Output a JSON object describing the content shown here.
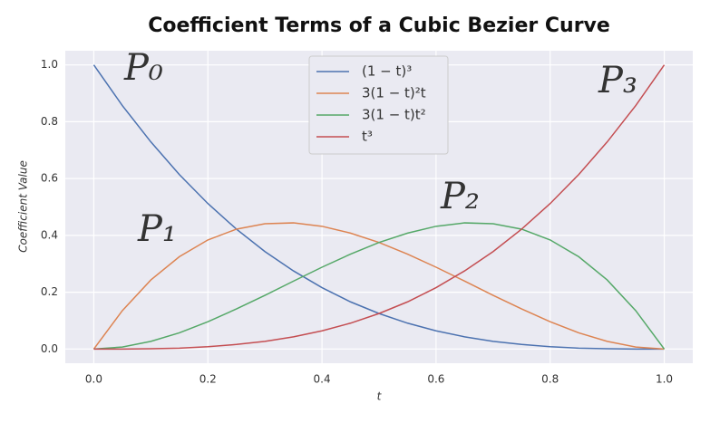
{
  "chart_data": {
    "type": "line",
    "title": "Coefficient Terms of a Cubic Bezier Curve",
    "x_label": "t",
    "y_label": "Coefficient Value",
    "x": [
      0,
      0.05,
      0.1,
      0.15,
      0.2,
      0.25,
      0.3,
      0.35,
      0.4,
      0.45,
      0.5,
      0.55,
      0.6,
      0.65,
      0.7,
      0.75,
      0.8,
      0.85,
      0.9,
      0.95,
      1
    ],
    "series": [
      {
        "name": "(1 − t)³",
        "color": "#4c72b0",
        "values": [
          1,
          0.857,
          0.729,
          0.614,
          0.512,
          0.422,
          0.343,
          0.275,
          0.216,
          0.166,
          0.125,
          0.091,
          0.064,
          0.043,
          0.027,
          0.016,
          0.008,
          0.003,
          0.001,
          0,
          0
        ]
      },
      {
        "name": "3(1 − t)²t",
        "color": "#dd8452",
        "values": [
          0,
          0.135,
          0.243,
          0.325,
          0.384,
          0.422,
          0.441,
          0.444,
          0.432,
          0.408,
          0.375,
          0.334,
          0.288,
          0.239,
          0.189,
          0.141,
          0.096,
          0.057,
          0.027,
          0.007,
          0
        ]
      },
      {
        "name": "3(1 − t)t²",
        "color": "#55a868",
        "values": [
          0,
          0.007,
          0.027,
          0.057,
          0.096,
          0.141,
          0.189,
          0.239,
          0.288,
          0.334,
          0.375,
          0.408,
          0.432,
          0.444,
          0.441,
          0.422,
          0.384,
          0.325,
          0.243,
          0.135,
          0
        ]
      },
      {
        "name": "t³",
        "color": "#c44e52",
        "values": [
          0,
          0,
          0.001,
          0.003,
          0.008,
          0.016,
          0.027,
          0.043,
          0.064,
          0.091,
          0.125,
          0.166,
          0.216,
          0.275,
          0.343,
          0.422,
          0.512,
          0.614,
          0.729,
          0.857,
          1
        ]
      }
    ],
    "annotations": [
      {
        "text": "P₀",
        "color": "#2a62a8"
      },
      {
        "text": "P₁",
        "color": "#e8821e"
      },
      {
        "text": "P₂",
        "color": "#1a8a5a"
      },
      {
        "text": "P₃",
        "color": "#d9480f"
      }
    ],
    "xlim": [
      -0.05,
      1.05
    ],
    "ylim": [
      -0.05,
      1.05
    ],
    "xticks": [
      {
        "value": 0,
        "label": "0.0"
      },
      0.2,
      0.4,
      0.6,
      0.8,
      {
        "value": 1,
        "label": "1.0"
      }
    ],
    "yticks": [
      {
        "value": 0,
        "label": "0.0"
      },
      0.2,
      0.4,
      0.6,
      0.8,
      {
        "value": 1,
        "label": "1.0"
      }
    ],
    "grid": true,
    "legend": "upper center"
  }
}
